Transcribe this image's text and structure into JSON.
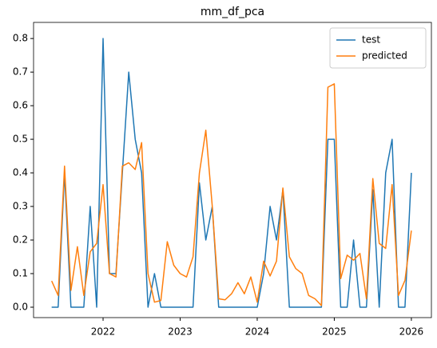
{
  "chart_data": {
    "type": "line",
    "title": "mm_df_pca",
    "x": [
      2021.333,
      2021.417,
      2021.5,
      2021.583,
      2021.667,
      2021.75,
      2021.833,
      2021.917,
      2022,
      2022.083,
      2022.167,
      2022.25,
      2022.333,
      2022.417,
      2022.5,
      2022.583,
      2022.667,
      2022.75,
      2022.833,
      2022.917,
      2023,
      2023.083,
      2023.167,
      2023.25,
      2023.333,
      2023.417,
      2023.5,
      2023.583,
      2023.667,
      2023.75,
      2023.833,
      2023.917,
      2024,
      2024.083,
      2024.167,
      2024.25,
      2024.333,
      2024.417,
      2024.5,
      2024.583,
      2024.667,
      2024.75,
      2024.833,
      2024.917,
      2025,
      2025.083,
      2025.167,
      2025.25,
      2025.333,
      2025.417,
      2025.5,
      2025.583,
      2025.667,
      2025.75,
      2025.833,
      2025.917,
      2026
    ],
    "series": [
      {
        "name": "test",
        "color": "#1f77b4",
        "values": [
          0,
          0,
          0.4,
          0,
          0,
          0,
          0.3,
          0,
          0.8,
          0.1,
          0.1,
          0.4,
          0.7,
          0.5,
          0.4,
          0,
          0.1,
          0,
          0,
          0,
          0,
          0,
          0,
          0.37,
          0.2,
          0.3,
          0,
          0,
          0,
          0,
          0,
          0,
          0,
          0.1,
          0.3,
          0.2,
          0.35,
          0,
          0,
          0,
          0,
          0,
          0,
          0.5,
          0.5,
          0,
          0,
          0.2,
          0,
          0,
          0.35,
          0,
          0.4,
          0.5,
          0,
          0,
          0.4
        ]
      },
      {
        "name": "predicted",
        "color": "#ff7f0e",
        "values": [
          0.078,
          0.035,
          0.42,
          0.05,
          0.18,
          0.035,
          0.165,
          0.19,
          0.365,
          0.1,
          0.09,
          0.42,
          0.43,
          0.41,
          0.49,
          0.1,
          0.015,
          0.02,
          0.195,
          0.125,
          0.1,
          0.09,
          0.15,
          0.4,
          0.527,
          0.3,
          0.025,
          0.022,
          0.04,
          0.073,
          0.04,
          0.09,
          0.015,
          0.137,
          0.093,
          0.137,
          0.355,
          0.15,
          0.115,
          0.1,
          0.035,
          0.025,
          0.005,
          0.655,
          0.665,
          0.085,
          0.155,
          0.14,
          0.16,
          0.025,
          0.383,
          0.19,
          0.175,
          0.365,
          0.035,
          0.08,
          0.228
        ]
      }
    ],
    "xlim": [
      2021.098,
      2026.26
    ],
    "xticks": [
      2022,
      2023,
      2024,
      2025,
      2026
    ],
    "ylim": [
      -0.031,
      0.848
    ],
    "yticks": [
      {
        "value": 0,
        "label": "0.0"
      },
      0.1,
      0.2,
      0.3,
      0.4,
      0.5,
      0.6,
      0.7,
      0.8
    ],
    "grid": false,
    "legend": "upper right"
  }
}
